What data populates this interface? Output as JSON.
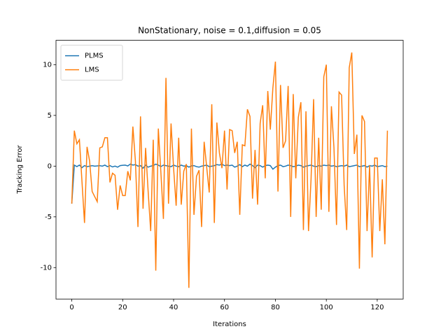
{
  "chart_data": {
    "type": "line",
    "title": "NonStationary, noise = 0.1,diffusion = 0.05",
    "xlabel": "Iterations",
    "ylabel": "Tracking Error",
    "legend": "upper left",
    "xlim": [
      -6.2,
      130.2
    ],
    "ylim": [
      -13.1,
      12.4
    ],
    "xticks": [
      0,
      20,
      40,
      60,
      80,
      100,
      120
    ],
    "yticks": [
      -10,
      -5,
      0,
      5,
      10
    ],
    "x": [
      0,
      1,
      2,
      3,
      4,
      5,
      6,
      7,
      8,
      9,
      10,
      11,
      12,
      13,
      14,
      15,
      16,
      17,
      18,
      19,
      20,
      21,
      22,
      23,
      24,
      25,
      26,
      27,
      28,
      29,
      30,
      31,
      32,
      33,
      34,
      35,
      36,
      37,
      38,
      39,
      40,
      41,
      42,
      43,
      44,
      45,
      46,
      47,
      48,
      49,
      50,
      51,
      52,
      53,
      54,
      55,
      56,
      57,
      58,
      59,
      60,
      61,
      62,
      63,
      64,
      65,
      66,
      67,
      68,
      69,
      70,
      71,
      72,
      73,
      74,
      75,
      76,
      77,
      78,
      79,
      80,
      81,
      82,
      83,
      84,
      85,
      86,
      87,
      88,
      89,
      90,
      91,
      92,
      93,
      94,
      95,
      96,
      97,
      98,
      99,
      100,
      101,
      102,
      103,
      104,
      105,
      106,
      107,
      108,
      109,
      110,
      111,
      112,
      113,
      114,
      115,
      116,
      117,
      118,
      119,
      120,
      121,
      122,
      123,
      124
    ],
    "series": [
      {
        "name": "PLMS",
        "color": "#1f77b4",
        "values": [
          -3.7,
          0.1,
          -0.05,
          0.1,
          -0.15,
          0.05,
          -0.05,
          0.0,
          0.05,
          0.0,
          0.02,
          0.05,
          0.0,
          0.1,
          -0.05,
          0.05,
          -0.08,
          0.0,
          -0.1,
          0.05,
          0.08,
          0.1,
          0.02,
          0.2,
          0.1,
          0.15,
          0.0,
          0.05,
          -0.2,
          0.1,
          -0.1,
          0.0,
          0.05,
          0.2,
          0.1,
          -0.05,
          0.1,
          0.05,
          0.0,
          -0.05,
          0.1,
          0.0,
          -0.05,
          0.1,
          0.0,
          0.05,
          -0.1,
          0.02,
          0.05,
          -0.05,
          -0.1,
          0.0,
          0.05,
          0.1,
          -0.05,
          0.0,
          0.05,
          0.15,
          0.1,
          0.2,
          0.05,
          0.1,
          0.05,
          0.1,
          -0.1,
          0.0,
          0.15,
          -0.05,
          0.1,
          0.0,
          0.2,
          0.05,
          -0.15,
          0.1,
          0.05,
          -0.1,
          0.05,
          0.1,
          0.05,
          -0.3,
          -0.1,
          0.05,
          0.1,
          -0.05,
          0.0,
          0.1,
          0.05,
          -0.05,
          0.0,
          0.1,
          0.05,
          -0.1,
          0.0,
          0.05,
          0.1,
          0.0,
          -0.05,
          0.05,
          0.0,
          0.1,
          0.05,
          0.1,
          0.0,
          0.05,
          -0.05,
          0.0,
          0.05,
          0.0,
          0.1,
          -0.05,
          0.0,
          0.05,
          0.1,
          -0.05,
          0.0,
          0.05,
          -0.1,
          0.05,
          0.0,
          0.1,
          -0.05,
          0.0,
          0.05,
          -0.05,
          0.0
        ]
      },
      {
        "name": "LMS",
        "color": "#ff7f0e",
        "values": [
          -3.7,
          3.5,
          2.2,
          2.6,
          -1.5,
          -5.6,
          1.9,
          0.5,
          -2.5,
          -3.0,
          -3.5,
          1.8,
          1.9,
          2.8,
          2.8,
          -1.6,
          -0.7,
          -0.9,
          -4.3,
          -1.9,
          -2.9,
          -2.9,
          -0.5,
          -1.4,
          3.9,
          0.5,
          -6.0,
          4.9,
          -4.2,
          1.8,
          -2.5,
          -6.4,
          2.6,
          -10.3,
          3.7,
          -0.6,
          -5.2,
          8.7,
          -3.7,
          4.2,
          -0.2,
          -3.9,
          2.8,
          -3.8,
          -0.5,
          0.2,
          -12.0,
          3.7,
          -4.8,
          -1.0,
          -0.4,
          -6.0,
          2.4,
          -0.1,
          -2.6,
          6.1,
          -5.6,
          4.3,
          1.3,
          -0.2,
          3.5,
          -2.3,
          3.6,
          3.5,
          1.3,
          2.4,
          -4.8,
          2.1,
          2.0,
          5.6,
          4.9,
          -3.2,
          1.6,
          -3.8,
          4.2,
          6.0,
          -1.2,
          7.4,
          3.6,
          7.7,
          10.3,
          -2.5,
          8.0,
          1.8,
          2.5,
          7.9,
          -5.0,
          7.1,
          -1.2,
          4.8,
          6.3,
          -6.3,
          5.4,
          -6.4,
          -1.3,
          6.6,
          -5.0,
          2.8,
          -4.3,
          8.8,
          10.0,
          -4.5,
          5.9,
          1.8,
          -5.8,
          7.3,
          7.0,
          -1.9,
          -6.3,
          9.7,
          11.2,
          1.2,
          3.1,
          -10.1,
          5.0,
          4.4,
          -6.4,
          0.1,
          -9.0,
          0.8,
          0.8,
          -6.4,
          -1.3,
          -7.7,
          3.5
        ]
      }
    ]
  }
}
